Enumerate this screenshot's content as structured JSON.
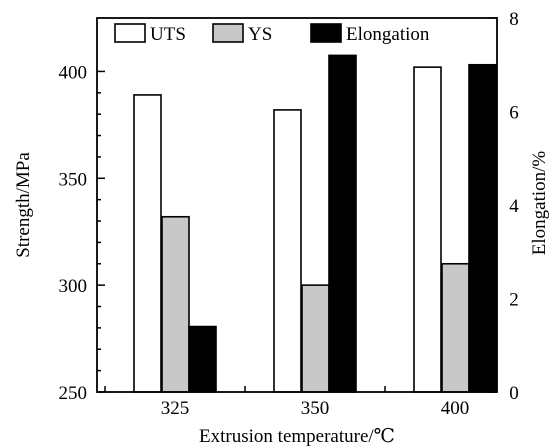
{
  "chart_data": {
    "type": "bar",
    "categories": [
      "325",
      "350",
      "400"
    ],
    "series": [
      {
        "name": "UTS",
        "axis": "left",
        "values": [
          389,
          382,
          402
        ],
        "color": "#ffffff"
      },
      {
        "name": "YS",
        "axis": "left",
        "values": [
          332,
          300,
          310
        ],
        "color": "#c8c8c8"
      },
      {
        "name": "Elongation",
        "axis": "right",
        "values": [
          1.4,
          7.2,
          7.0
        ],
        "color": "#000000"
      }
    ],
    "xlabel": "Extrusion temperature/℃",
    "ylabel": "Strength/MPa",
    "ylabel_right": "Elongation/%",
    "ylim": [
      250,
      425
    ],
    "ylim_right": [
      0,
      8
    ],
    "yticks": [
      250,
      300,
      350,
      400
    ],
    "yticks_right": [
      0,
      2,
      4,
      6,
      8
    ],
    "legend": {
      "position": "top",
      "entries": [
        "UTS",
        "YS",
        "Elongation"
      ]
    },
    "grid": false
  }
}
